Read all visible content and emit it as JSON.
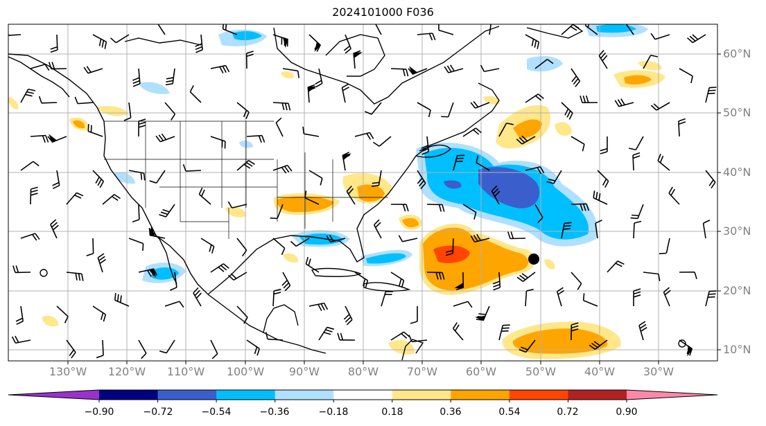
{
  "title": "2024101000 F036",
  "map": {
    "lat_labels": [
      "60°N",
      "50°N",
      "40°N",
      "30°N",
      "20°N",
      "10°N"
    ],
    "lon_labels": [
      "130°W",
      "120°W",
      "110°W",
      "100°W",
      "90°W",
      "80°W",
      "70°W",
      "60°W",
      "50°W",
      "40°W",
      "30°W"
    ],
    "storm_marker": {
      "lon": "50°W",
      "lat": "25.5°N"
    }
  },
  "colorbar": {
    "ticks": [
      "−0.90",
      "−0.72",
      "−0.54",
      "−0.36",
      "−0.18",
      "0.18",
      "0.36",
      "0.54",
      "0.72",
      "0.90"
    ],
    "colors": [
      "#9932cc",
      "#000080",
      "#3a5fcd",
      "#00bfff",
      "#b0e0ff",
      "#ffffff",
      "#ffe78a",
      "#ffa500",
      "#ff4500",
      "#b22222",
      "#ff88aa"
    ]
  }
}
